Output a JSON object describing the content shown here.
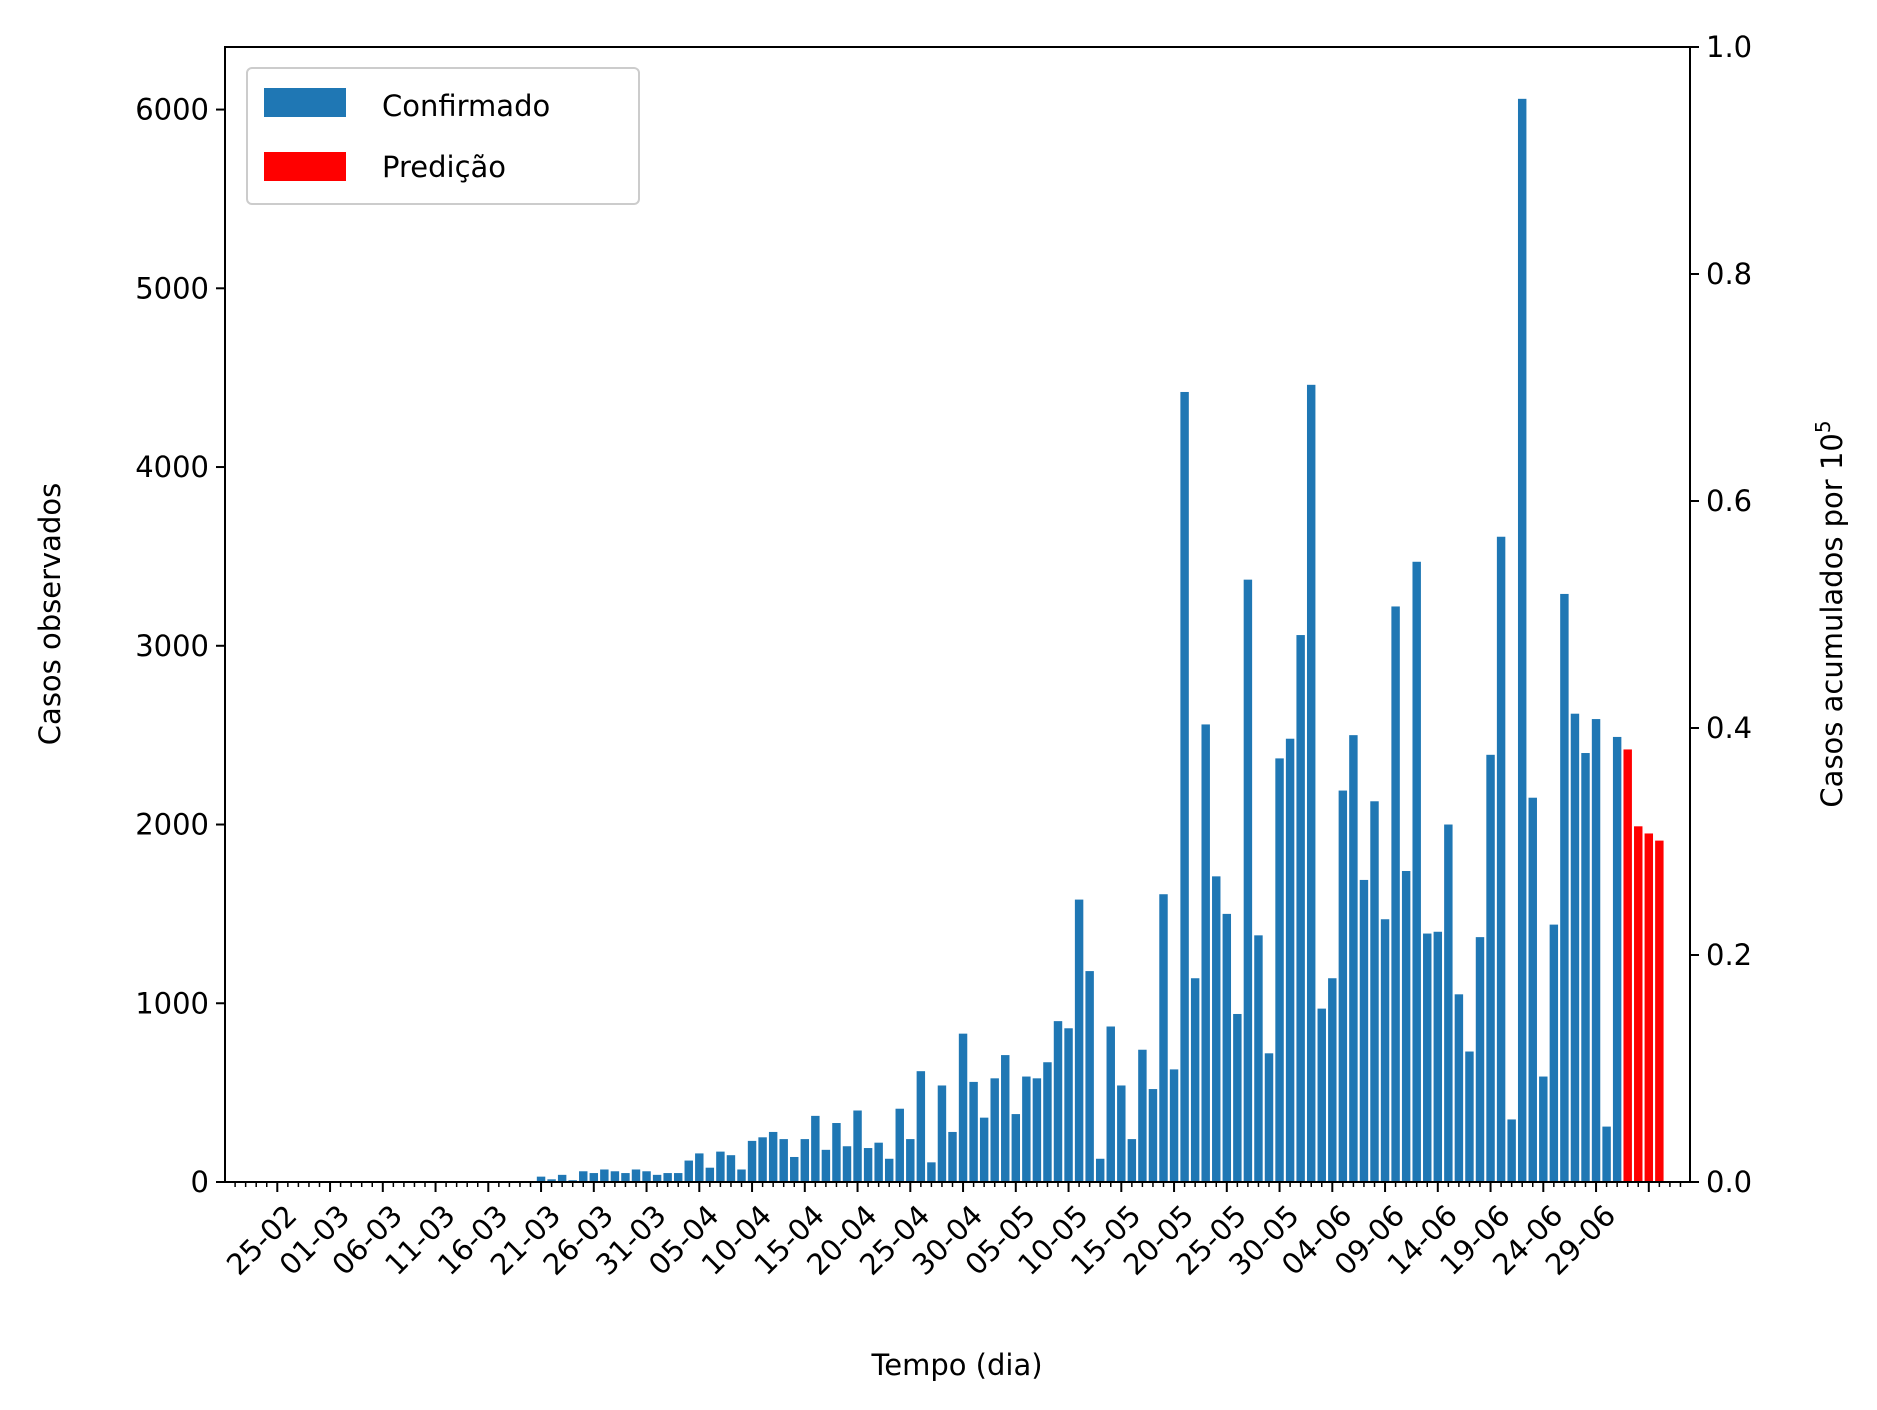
{
  "chart_data": {
    "type": "bar",
    "xlabel": "Tempo (dia)",
    "ylabel": "Casos observados",
    "y2label_main": "Casos acumulados por 10",
    "y2label_sup": "5",
    "ylim": [
      0,
      6350
    ],
    "y2lim": [
      0.0,
      1.0
    ],
    "yticks": [
      "0",
      "1000",
      "2000",
      "3000",
      "4000",
      "5000",
      "6000"
    ],
    "y2ticks": [
      "0.0",
      "0.2",
      "0.4",
      "0.6",
      "0.8",
      "1.0"
    ],
    "xtick_labels": [
      "25-02",
      "01-03",
      "06-03",
      "11-03",
      "16-03",
      "21-03",
      "26-03",
      "31-03",
      "05-04",
      "10-04",
      "15-04",
      "20-04",
      "25-04",
      "30-04",
      "05-05",
      "10-05",
      "15-05",
      "20-05",
      "25-05",
      "30-05",
      "04-06",
      "09-06",
      "14-06",
      "19-06",
      "24-06",
      "29-06"
    ],
    "grid": false,
    "legend_position": "top-left",
    "colors": {
      "confirmado": "#1f77b4",
      "predicao": "#ff0000"
    },
    "series": [
      {
        "name": "Confirmado",
        "start_date": "25-02",
        "values": [
          0,
          0,
          0,
          0,
          0,
          0,
          0,
          0,
          0,
          0,
          0,
          0,
          0,
          0,
          0,
          0,
          0,
          0,
          0,
          0,
          0,
          0,
          0,
          2,
          5,
          30,
          15,
          40,
          10,
          60,
          50,
          70,
          60,
          50,
          70,
          60,
          40,
          50,
          50,
          120,
          160,
          80,
          170,
          150,
          70,
          230,
          250,
          280,
          240,
          140,
          240,
          370,
          180,
          330,
          200,
          400,
          190,
          220,
          130,
          410,
          240,
          620,
          110,
          540,
          280,
          830,
          560,
          360,
          580,
          710,
          380,
          590,
          580,
          670,
          900,
          860,
          1580,
          1180,
          130,
          870,
          540,
          240,
          740,
          520,
          1610,
          630,
          4420,
          1140,
          2560,
          1710,
          1500,
          940,
          3370,
          1380,
          720,
          2370,
          2480,
          3060,
          4460,
          970,
          1140,
          2190,
          2500,
          1690,
          2130,
          1470,
          3220,
          1740,
          3470,
          1390,
          1400,
          2000,
          1050,
          730,
          1370,
          2390,
          3610,
          350,
          6060,
          2150,
          590,
          1440,
          3290,
          2620,
          2400,
          2590,
          310,
          2490
        ]
      },
      {
        "name": "Predição",
        "start_date": "29-06",
        "values": [
          2420,
          1990,
          1950,
          1910
        ]
      }
    ]
  }
}
